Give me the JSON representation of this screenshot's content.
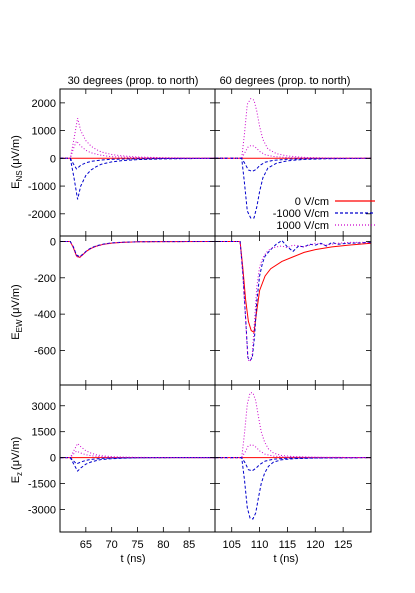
{
  "figure": {
    "titles": [
      "30 degrees (prop. to north)",
      "60 degrees (prop. to north)"
    ],
    "row_labels": [
      {
        "main": "E",
        "sub": "NS",
        "unit": "(μV/m)"
      },
      {
        "main": "E",
        "sub": "EW",
        "unit": "(μV/m)"
      },
      {
        "main": "E",
        "sub": "z",
        "unit": "(μV/m)"
      }
    ],
    "xlabel": "t (ns)",
    "legend": [
      "0 V/cm",
      "-1000 V/cm",
      "1000 V/cm"
    ],
    "colors": {
      "0 V/cm": "#ff0000",
      "-1000 V/cm": "#0000cc",
      "1000 V/cm": "#cc00cc"
    },
    "legend_panel": "row 1, right column, lower-right"
  },
  "chart_data": {
    "type": "line",
    "layout": "3 rows x 2 columns, shared x per column, shared y per row",
    "columns": [
      {
        "title": "30 degrees (prop. to north)",
        "xlim": [
          60,
          90
        ],
        "xticks": [
          65,
          70,
          75,
          80,
          85
        ]
      },
      {
        "title": "60 degrees (prop. to north)",
        "xlim": [
          102,
          130
        ],
        "xticks": [
          105,
          110,
          115,
          120,
          125
        ]
      }
    ],
    "rows": [
      {
        "ylabel": "E_NS (μV/m)",
        "ylim": [
          -2800,
          2500
        ],
        "yticks": [
          -2000,
          -1000,
          0,
          1000,
          2000
        ]
      },
      {
        "ylabel": "E_EW (μV/m)",
        "ylim": [
          -790,
          30
        ],
        "yticks": [
          -600,
          -400,
          -200,
          0
        ]
      },
      {
        "ylabel": "E_z (μV/m)",
        "ylim": [
          -4300,
          4200
        ],
        "yticks": [
          -3000,
          -1500,
          0,
          1500,
          3000
        ]
      }
    ],
    "series_styles": [
      {
        "name": "0 V/cm",
        "color": "#ff0000",
        "dash": "none"
      },
      {
        "name": "-1000 V/cm",
        "color": "#0000cc",
        "dash": "dashed"
      },
      {
        "name": "1000 V/cm",
        "color": "#cc00cc",
        "dash": "dotted"
      }
    ],
    "panels": [
      {
        "row": 0,
        "col": 0,
        "series": [
          {
            "name": "0 V/cm",
            "x": [
              60,
              90
            ],
            "y": [
              0,
              0
            ]
          },
          {
            "name": "-1000 V/cm",
            "x": [
              60,
              62,
              62.7,
              63.4,
              64,
              65,
              66,
              67,
              68,
              70,
              72,
              75,
              80,
              85,
              90
            ],
            "y": [
              0,
              0,
              -700,
              -1480,
              -1000,
              -620,
              -420,
              -300,
              -210,
              -130,
              -80,
              -45,
              -20,
              -8,
              0
            ]
          },
          {
            "name": "-1000 V/cm",
            "x": [
              60,
              62,
              62.6,
              63.2,
              64,
              65,
              66,
              68,
              70,
              75,
              80,
              90
            ],
            "y": [
              0,
              0,
              -200,
              -380,
              -250,
              -160,
              -110,
              -60,
              -35,
              -15,
              -5,
              0
            ]
          },
          {
            "name": "1000 V/cm",
            "x": [
              60,
              62,
              62.7,
              63.4,
              64,
              65,
              66,
              67,
              68,
              70,
              72,
              75,
              80,
              85,
              90
            ],
            "y": [
              0,
              0,
              700,
              1450,
              1000,
              640,
              440,
              320,
              230,
              140,
              90,
              50,
              22,
              8,
              0
            ]
          },
          {
            "name": "1000 V/cm",
            "x": [
              60,
              62,
              62.6,
              63.2,
              64,
              65,
              66,
              68,
              70,
              75,
              80,
              90
            ],
            "y": [
              0,
              0,
              350,
              620,
              450,
              290,
              200,
              110,
              60,
              25,
              8,
              0
            ]
          }
        ]
      },
      {
        "row": 0,
        "col": 1,
        "series": [
          {
            "name": "0 V/cm",
            "x": [
              102,
              130
            ],
            "y": [
              0,
              0
            ]
          },
          {
            "name": "-1000 V/cm",
            "x": [
              102,
              106.8,
              107.3,
              107.8,
              108.4,
              109,
              109.5,
              110,
              110.6,
              111.5,
              113,
              115,
              118,
              122,
              130
            ],
            "y": [
              0,
              0,
              -900,
              -1900,
              -2150,
              -2150,
              -1750,
              -1200,
              -700,
              -350,
              -180,
              -90,
              -40,
              -15,
              0
            ]
          },
          {
            "name": "-1000 V/cm",
            "x": [
              102,
              106.8,
              107.4,
              108,
              108.7,
              109.4,
              110,
              111,
              112.5,
              115,
              120,
              130
            ],
            "y": [
              0,
              0,
              -200,
              -420,
              -470,
              -400,
              -260,
              -140,
              -70,
              -30,
              -10,
              0
            ]
          },
          {
            "name": "1000 V/cm",
            "x": [
              102,
              106.8,
              107.3,
              107.8,
              108.4,
              109,
              109.5,
              110,
              110.6,
              111.5,
              113,
              115,
              118,
              122,
              130
            ],
            "y": [
              0,
              0,
              900,
              1950,
              2150,
              2100,
              1700,
              1150,
              680,
              340,
              170,
              85,
              35,
              12,
              0
            ]
          },
          {
            "name": "1000 V/cm",
            "x": [
              102,
              106.8,
              107.4,
              108,
              108.7,
              109.4,
              110,
              111,
              112.5,
              115,
              120,
              130
            ],
            "y": [
              0,
              0,
              220,
              430,
              470,
              380,
              250,
              130,
              65,
              25,
              8,
              0
            ]
          }
        ]
      },
      {
        "row": 1,
        "col": 0,
        "series": [
          {
            "name": "0 V/cm",
            "x": [
              60,
              62,
              62.6,
              63.2,
              63.8,
              64.5,
              65.2,
              66,
              67,
              68.5,
              70,
              72,
              75,
              80,
              90
            ],
            "y": [
              0,
              0,
              -35,
              -80,
              -88,
              -70,
              -52,
              -38,
              -26,
              -15,
              -9,
              -5,
              -2,
              -1,
              0
            ]
          },
          {
            "name": "-1000 V/cm",
            "x": [
              60,
              62,
              62.6,
              63.2,
              63.8,
              64.5,
              65.2,
              66,
              67,
              68.5,
              70,
              72,
              75,
              80,
              90
            ],
            "y": [
              0,
              0,
              -30,
              -74,
              -84,
              -68,
              -50,
              -36,
              -24,
              -14,
              -8,
              -4,
              -2,
              -1,
              0
            ]
          },
          {
            "name": "1000 V/cm",
            "x": [
              60,
              62,
              62.6,
              63.2,
              63.8,
              64.5,
              65.2,
              66,
              67,
              68.5,
              70,
              72,
              75,
              80,
              90
            ],
            "y": [
              0,
              0,
              -36,
              -82,
              -90,
              -72,
              -53,
              -38,
              -27,
              -16,
              -9,
              -5,
              -2,
              -1,
              0
            ]
          }
        ]
      },
      {
        "row": 1,
        "col": 1,
        "series": [
          {
            "name": "0 V/cm",
            "x": [
              102,
              106.5,
              107,
              107.5,
              108,
              108.5,
              109,
              109.5,
              110,
              111,
              112,
              114,
              116,
              118,
              120,
              123,
              126,
              130
            ],
            "y": [
              0,
              0,
              -150,
              -320,
              -440,
              -490,
              -500,
              -380,
              -270,
              -190,
              -150,
              -110,
              -85,
              -60,
              -45,
              -30,
              -20,
              -10
            ]
          },
          {
            "name": "-1000 V/cm",
            "x": [
              102,
              106.5,
              107,
              107.5,
              107.9,
              108.3,
              108.7,
              109.1,
              109.5,
              110,
              110.5,
              111,
              112,
              113,
              114,
              115,
              116,
              117,
              118,
              119,
              120,
              121,
              122,
              123,
              124,
              126,
              130
            ],
            "y": [
              0,
              0,
              -180,
              -420,
              -640,
              -655,
              -640,
              -520,
              -330,
              -190,
              -120,
              -80,
              -45,
              -15,
              5,
              -30,
              -55,
              -25,
              -30,
              -15,
              -20,
              -10,
              -25,
              -5,
              -15,
              -10,
              -5
            ]
          },
          {
            "name": "1000 V/cm",
            "x": [
              102,
              106.5,
              107,
              107.5,
              107.9,
              108.3,
              108.7,
              109.1,
              109.5,
              110,
              110.6,
              111.2,
              112,
              113,
              114,
              115,
              116,
              118,
              120,
              122,
              124,
              126,
              130
            ],
            "y": [
              0,
              0,
              -190,
              -430,
              -650,
              -660,
              -620,
              -430,
              -250,
              -140,
              -90,
              -60,
              -40,
              -30,
              -25,
              -35,
              -20,
              -30,
              -10,
              -20,
              -10,
              -5,
              -5
            ]
          }
        ]
      },
      {
        "row": 2,
        "col": 0,
        "series": [
          {
            "name": "0 V/cm",
            "x": [
              60,
              90
            ],
            "y": [
              0,
              0
            ]
          },
          {
            "name": "-1000 V/cm",
            "x": [
              60,
              62,
              62.7,
              63.4,
              64,
              65,
              66,
              67,
              68,
              70,
              72,
              75,
              80,
              90
            ],
            "y": [
              0,
              0,
              -400,
              -780,
              -600,
              -380,
              -250,
              -170,
              -110,
              -60,
              -30,
              -12,
              -5,
              0
            ]
          },
          {
            "name": "-1000 V/cm",
            "x": [
              60,
              62,
              62.6,
              63.2,
              64,
              65,
              66,
              68,
              70,
              75,
              90
            ],
            "y": [
              0,
              0,
              -180,
              -360,
              -260,
              -160,
              -100,
              -45,
              -20,
              -5,
              0
            ]
          },
          {
            "name": "1000 V/cm",
            "x": [
              60,
              62,
              62.7,
              63.4,
              64,
              65,
              66,
              67,
              68,
              70,
              72,
              75,
              80,
              90
            ],
            "y": [
              0,
              0,
              420,
              820,
              640,
              400,
              260,
              170,
              110,
              60,
              30,
              12,
              5,
              0
            ]
          },
          {
            "name": "1000 V/cm",
            "x": [
              60,
              62,
              62.6,
              63.2,
              64,
              65,
              66,
              68,
              70,
              75,
              90
            ],
            "y": [
              0,
              0,
              200,
              380,
              270,
              170,
              110,
              50,
              22,
              6,
              0
            ]
          }
        ]
      },
      {
        "row": 2,
        "col": 1,
        "series": [
          {
            "name": "0 V/cm",
            "x": [
              102,
              130
            ],
            "y": [
              0,
              0
            ]
          },
          {
            "name": "-1000 V/cm",
            "x": [
              102,
              106.8,
              107.3,
              107.8,
              108.3,
              108.8,
              109.3,
              109.8,
              110.3,
              110.9,
              111.6,
              112.5,
              114,
              116,
              120,
              130
            ],
            "y": [
              0,
              0,
              -1300,
              -2900,
              -3500,
              -3550,
              -3200,
              -2300,
              -1500,
              -900,
              -500,
              -260,
              -120,
              -60,
              -20,
              0
            ]
          },
          {
            "name": "-1000 V/cm",
            "x": [
              102,
              106.8,
              107.4,
              108,
              108.7,
              109.4,
              110,
              111,
              112.5,
              115,
              130
            ],
            "y": [
              0,
              0,
              -300,
              -700,
              -760,
              -600,
              -400,
              -200,
              -90,
              -30,
              0
            ]
          },
          {
            "name": "1000 V/cm",
            "x": [
              102,
              106.8,
              107.3,
              107.8,
              108.3,
              108.8,
              109.3,
              109.8,
              110.3,
              110.9,
              111.6,
              112.5,
              114,
              116,
              120,
              130
            ],
            "y": [
              0,
              0,
              1400,
              3100,
              3750,
              3750,
              3300,
              2350,
              1500,
              900,
              500,
              260,
              120,
              60,
              20,
              0
            ]
          },
          {
            "name": "1000 V/cm",
            "x": [
              102,
              106.8,
              107.4,
              108,
              108.7,
              109.4,
              110,
              111,
              112.5,
              115,
              130
            ],
            "y": [
              0,
              0,
              320,
              700,
              750,
              600,
              390,
              200,
              90,
              30,
              0
            ]
          }
        ]
      }
    ]
  }
}
